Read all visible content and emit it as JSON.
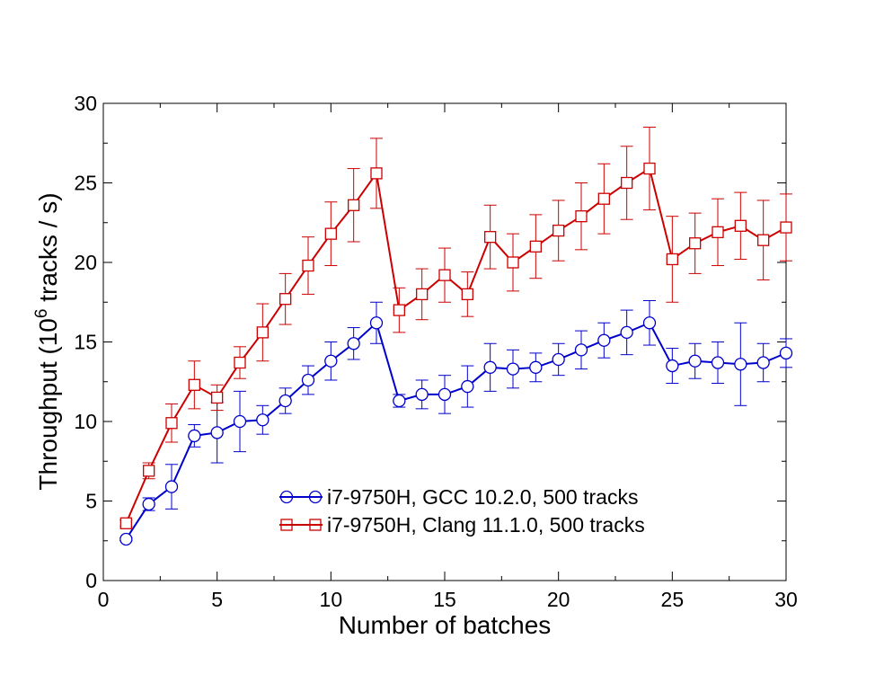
{
  "chart_data": {
    "type": "line",
    "xlabel": "Number of batches",
    "ylabel_prefix": "Throughput (10",
    "ylabel_sup": "6",
    "ylabel_suffix": " tracks / s)",
    "xlim": [
      0,
      30
    ],
    "ylim": [
      0,
      30
    ],
    "xticks": [
      0,
      5,
      10,
      15,
      20,
      25,
      30
    ],
    "yticks": [
      0,
      5,
      10,
      15,
      20,
      25,
      30
    ],
    "grid": false,
    "legend_position": "lower-center",
    "series": [
      {
        "name": "i7-9750H, GCC 10.2.0, 500 tracks",
        "color": "#0000cc",
        "marker": "circle",
        "x": [
          1,
          2,
          3,
          4,
          5,
          6,
          7,
          8,
          9,
          10,
          11,
          12,
          13,
          14,
          15,
          16,
          17,
          18,
          19,
          20,
          21,
          22,
          23,
          24,
          25,
          26,
          27,
          28,
          29,
          30
        ],
        "y": [
          2.6,
          4.8,
          5.9,
          9.1,
          9.3,
          10.0,
          10.1,
          11.3,
          12.6,
          13.8,
          14.9,
          16.2,
          11.3,
          11.7,
          11.7,
          12.2,
          13.4,
          13.3,
          13.4,
          13.9,
          14.5,
          15.1,
          15.6,
          16.2,
          13.5,
          13.8,
          13.7,
          13.6,
          13.7,
          14.3
        ],
        "err": [
          0.1,
          0.4,
          1.4,
          0.7,
          1.9,
          1.9,
          0.9,
          0.8,
          0.9,
          1.2,
          1.0,
          1.3,
          0.4,
          0.9,
          1.2,
          1.3,
          1.5,
          1.2,
          0.9,
          1.0,
          1.2,
          1.1,
          1.4,
          1.4,
          1.1,
          1.1,
          1.3,
          2.6,
          1.2,
          0.9
        ]
      },
      {
        "name": "i7-9750H, Clang 11.1.0, 500 tracks",
        "color": "#cc0000",
        "marker": "square",
        "x": [
          1,
          2,
          3,
          4,
          5,
          6,
          7,
          8,
          9,
          10,
          11,
          12,
          13,
          14,
          15,
          16,
          17,
          18,
          19,
          20,
          21,
          22,
          23,
          24,
          25,
          26,
          27,
          28,
          29,
          30
        ],
        "y": [
          3.6,
          6.9,
          9.9,
          12.3,
          11.5,
          13.7,
          15.6,
          17.7,
          19.8,
          21.8,
          23.6,
          25.6,
          17.0,
          18.0,
          19.2,
          18.0,
          21.6,
          20.0,
          21.0,
          22.0,
          22.9,
          24.0,
          25.0,
          25.9,
          20.2,
          21.2,
          21.9,
          22.3,
          21.4,
          22.2
        ],
        "err": [
          0.2,
          0.5,
          1.2,
          1.5,
          0.8,
          1.0,
          1.8,
          1.6,
          1.8,
          2.0,
          2.3,
          2.2,
          1.4,
          1.6,
          1.7,
          1.4,
          2.0,
          1.8,
          2.0,
          1.9,
          2.1,
          2.2,
          2.3,
          2.6,
          2.7,
          1.9,
          2.1,
          2.1,
          2.5,
          2.1
        ]
      }
    ]
  }
}
